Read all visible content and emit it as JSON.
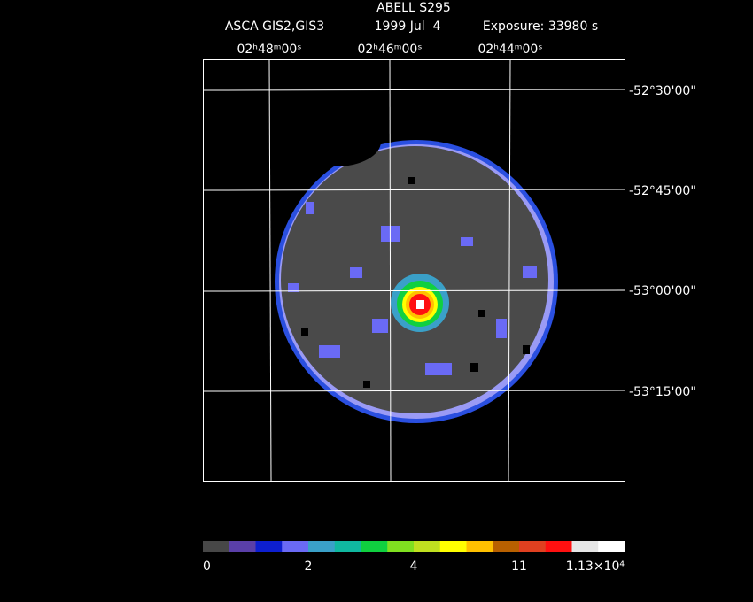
{
  "header": {
    "title": "ABELL S295",
    "instrument": "ASCA GIS2,GIS3",
    "date": "1999 Jul  4",
    "exposure": "Exposure: 33980 s"
  },
  "ra_labels": [
    "02ʰ48ᵐ00ˢ",
    "02ʰ46ᵐ00ˢ",
    "02ʰ44ᵐ00ˢ"
  ],
  "dec_labels": [
    "-52°30'00\"",
    "-52°45'00\"",
    "-53°00'00\"",
    "-53°15'00\""
  ],
  "colorbar": {
    "colors": [
      "#474747",
      "#5a3fa8",
      "#0d1fd0",
      "#6a6af5",
      "#3aa0c8",
      "#10b8a0",
      "#10d040",
      "#80e020",
      "#c0e020",
      "#ffff00",
      "#ffc000",
      "#b86000",
      "#e04020",
      "#ff1010",
      "#e6e6e6",
      "#ffffff"
    ],
    "labels": [
      "0",
      "2",
      "4",
      "11",
      "1.13×10⁴"
    ]
  }
}
